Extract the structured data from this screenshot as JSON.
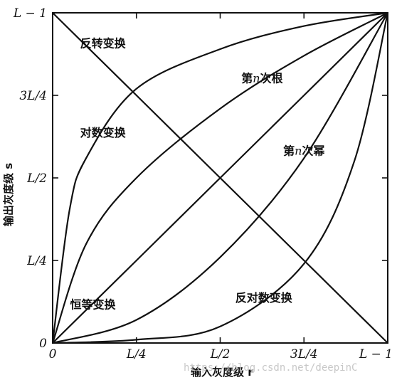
{
  "chart_data": {
    "type": "line",
    "xlabel": "输入灰度级 r",
    "ylabel": "输出灰度级 s",
    "xlim": [
      0,
      1
    ],
    "ylim": [
      0,
      1
    ],
    "grid": false,
    "x_ticks": [
      {
        "value": 0,
        "label": "0"
      },
      {
        "value": 0.25,
        "label": "L/4"
      },
      {
        "value": 0.5,
        "label": "L/2"
      },
      {
        "value": 0.75,
        "label": "3L/4"
      },
      {
        "value": 1,
        "label": "L − 1"
      }
    ],
    "y_ticks": [
      {
        "value": 0,
        "label": "0"
      },
      {
        "value": 0.25,
        "label": "L/4"
      },
      {
        "value": 0.5,
        "label": "L/2"
      },
      {
        "value": 0.75,
        "label": "3L/4"
      },
      {
        "value": 1,
        "label": "L − 1"
      }
    ],
    "series": [
      {
        "name": "反转变换",
        "x": [
          0,
          0.25,
          0.5,
          0.75,
          1
        ],
        "y": [
          1,
          0.75,
          0.5,
          0.25,
          0
        ]
      },
      {
        "name": "对数变换",
        "x": [
          0,
          0.05,
          0.1,
          0.25,
          0.5,
          0.75,
          1
        ],
        "y": [
          0,
          0.4,
          0.56,
          0.77,
          0.89,
          0.96,
          1
        ]
      },
      {
        "name": "第n次根",
        "x": [
          0,
          0.1,
          0.25,
          0.5,
          0.75,
          1
        ],
        "y": [
          0,
          0.3,
          0.5,
          0.71,
          0.87,
          1
        ]
      },
      {
        "name": "恒等变换",
        "x": [
          0,
          0.25,
          0.5,
          0.75,
          1
        ],
        "y": [
          0,
          0.25,
          0.5,
          0.75,
          1
        ]
      },
      {
        "name": "第n次幂",
        "x": [
          0,
          0.25,
          0.5,
          0.75,
          1
        ],
        "y": [
          0,
          0.07,
          0.26,
          0.56,
          1
        ]
      },
      {
        "name": "反对数变换",
        "x": [
          0,
          0.25,
          0.5,
          0.75,
          0.9,
          1
        ],
        "y": [
          0,
          0.01,
          0.05,
          0.24,
          0.55,
          1
        ]
      }
    ],
    "annotations": [
      {
        "text": "反转变换",
        "x": 0.15,
        "y": 0.895
      },
      {
        "text": "对数变换",
        "x": 0.15,
        "y": 0.625
      },
      {
        "text": "第n次根",
        "x": 0.625,
        "y": 0.79
      },
      {
        "text": "第n次幂",
        "x": 0.75,
        "y": 0.57
      },
      {
        "text": "恒等变换",
        "x": 0.12,
        "y": 0.105
      },
      {
        "text": "反对数变换",
        "x": 0.63,
        "y": 0.125
      }
    ]
  },
  "watermark": "https://blog.csdn.net/deepinC"
}
